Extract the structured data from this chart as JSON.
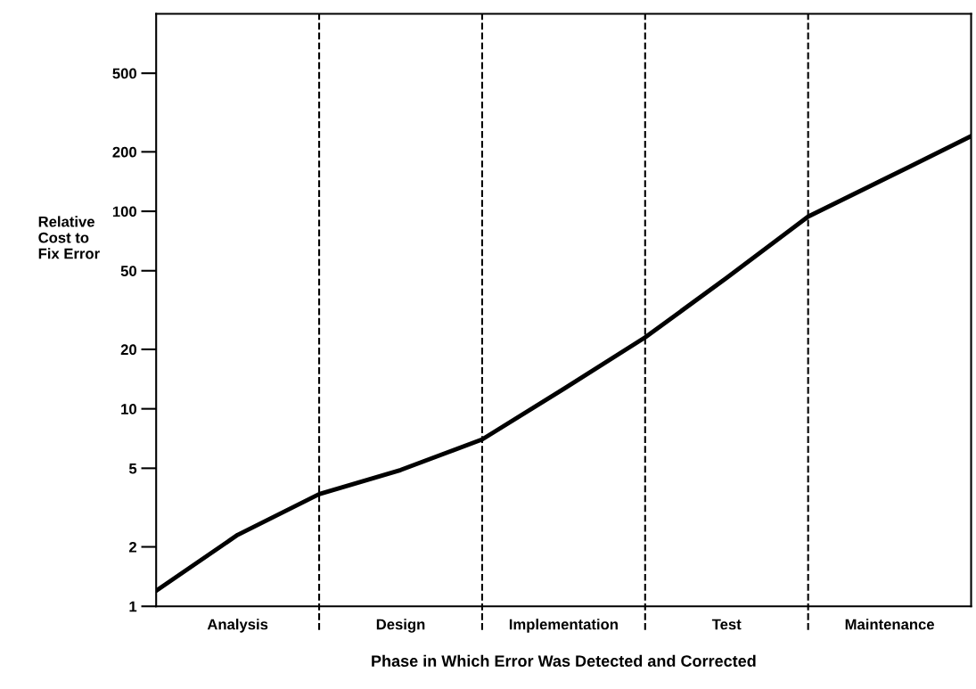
{
  "chart_data": {
    "type": "line",
    "xlabel": "Phase in Which Error Was Detected and Corrected",
    "ylabel": "Relative\nCost to\nFix Error",
    "categories": [
      null,
      "Analysis",
      null,
      "Design",
      null,
      "Implementation",
      null,
      "Test",
      null,
      "Maintenance",
      null
    ],
    "series": [
      {
        "color": "#000000",
        "values": [
          1.2,
          2.3,
          3.7,
          4.9,
          7.0,
          12.6,
          23,
          46,
          94,
          150,
          240
        ]
      }
    ],
    "log": "y",
    "ylim": [
      1,
      1000
    ],
    "yticks": [
      1,
      2,
      5,
      10,
      20,
      50,
      100,
      200,
      500
    ],
    "grid": "x",
    "legend": false,
    "marker": "none",
    "line_style": "solid"
  }
}
